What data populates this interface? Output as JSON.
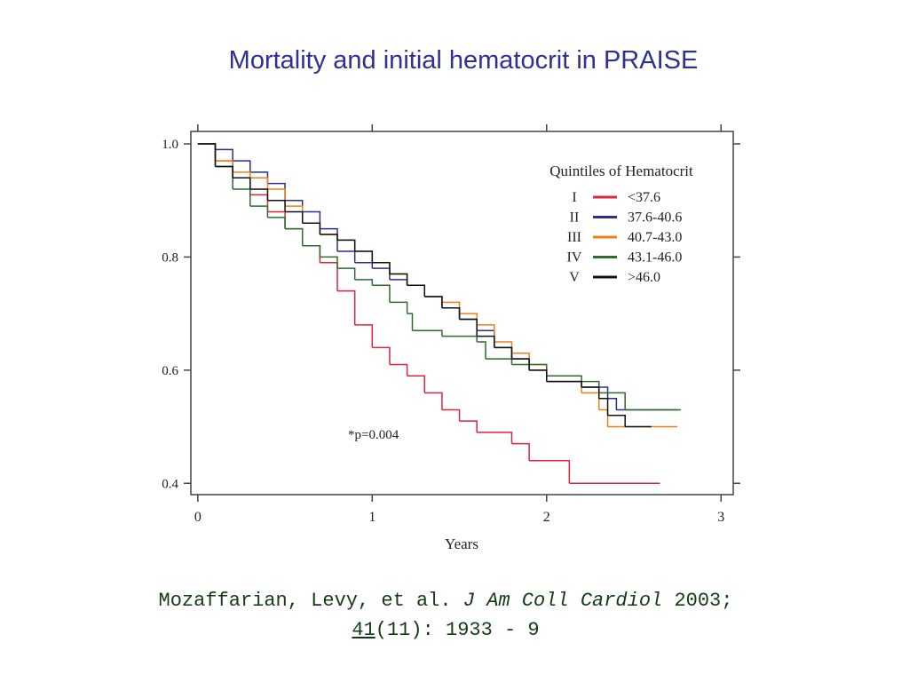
{
  "chart_data": {
    "type": "step",
    "title": "Mortality and initial hematocrit in PRAISE",
    "xlabel": "Years",
    "xlim": [
      -0.04,
      3.07
    ],
    "ylim": [
      0.38,
      1.022
    ],
    "xticks": [
      0,
      1,
      2,
      3
    ],
    "yticks": [
      {
        "value": 1,
        "label": "1.0"
      },
      0.8,
      0.6,
      0.4
    ],
    "legend_title": "Quintiles of Hematocrit",
    "annotation": "*p=0.004",
    "series": [
      {
        "name": "I",
        "label": "<37.6",
        "color": "#d7263d",
        "x": [
          0,
          0.1,
          0.2,
          0.3,
          0.4,
          0.5,
          0.6,
          0.7,
          0.8,
          0.9,
          1.0,
          1.1,
          1.2,
          1.3,
          1.4,
          1.5,
          1.6,
          1.8,
          1.9,
          2.13,
          2.65
        ],
        "values": [
          1.0,
          0.97,
          0.94,
          0.91,
          0.88,
          0.85,
          0.82,
          0.79,
          0.74,
          0.68,
          0.64,
          0.61,
          0.59,
          0.56,
          0.53,
          0.51,
          0.49,
          0.47,
          0.44,
          0.4,
          0.4
        ]
      },
      {
        "name": "II",
        "label": "37.6-40.6",
        "color": "#2b2f8f",
        "x": [
          0,
          0.1,
          0.2,
          0.3,
          0.4,
          0.5,
          0.6,
          0.7,
          0.8,
          0.9,
          1.0,
          1.1,
          1.2,
          1.3,
          1.4,
          1.5,
          1.6,
          1.7,
          1.8,
          1.9,
          2.0,
          2.2,
          2.35,
          2.4,
          2.75
        ],
        "values": [
          1.0,
          0.99,
          0.97,
          0.95,
          0.93,
          0.9,
          0.88,
          0.85,
          0.81,
          0.79,
          0.78,
          0.76,
          0.75,
          0.73,
          0.71,
          0.69,
          0.67,
          0.64,
          0.62,
          0.6,
          0.58,
          0.57,
          0.55,
          0.53,
          0.53
        ]
      },
      {
        "name": "III",
        "label": "40.7-43.0",
        "color": "#f07f1a",
        "x": [
          0,
          0.1,
          0.2,
          0.3,
          0.4,
          0.5,
          0.6,
          0.7,
          0.8,
          0.9,
          1.0,
          1.1,
          1.2,
          1.3,
          1.4,
          1.5,
          1.6,
          1.7,
          1.8,
          1.9,
          2.0,
          2.2,
          2.3,
          2.35,
          2.75
        ],
        "values": [
          1.0,
          0.97,
          0.95,
          0.94,
          0.92,
          0.89,
          0.86,
          0.84,
          0.83,
          0.81,
          0.79,
          0.77,
          0.75,
          0.73,
          0.72,
          0.7,
          0.68,
          0.65,
          0.63,
          0.61,
          0.58,
          0.56,
          0.53,
          0.5,
          0.5
        ]
      },
      {
        "name": "IV",
        "label": "43.1-46.0",
        "color": "#2e6b2e",
        "x": [
          0,
          0.1,
          0.2,
          0.3,
          0.4,
          0.5,
          0.6,
          0.7,
          0.8,
          0.9,
          1.0,
          1.1,
          1.2,
          1.23,
          1.4,
          1.6,
          1.65,
          1.8,
          2.0,
          2.2,
          2.3,
          2.45,
          2.77
        ],
        "values": [
          1.0,
          0.96,
          0.92,
          0.89,
          0.87,
          0.85,
          0.82,
          0.8,
          0.78,
          0.76,
          0.75,
          0.72,
          0.7,
          0.67,
          0.66,
          0.65,
          0.62,
          0.61,
          0.59,
          0.58,
          0.56,
          0.53,
          0.53
        ]
      },
      {
        "name": "V",
        "label": ">46.0",
        "color": "#111111",
        "x": [
          0,
          0.1,
          0.2,
          0.3,
          0.4,
          0.5,
          0.6,
          0.7,
          0.8,
          0.9,
          1.0,
          1.1,
          1.2,
          1.3,
          1.4,
          1.5,
          1.6,
          1.7,
          1.8,
          1.9,
          2.0,
          2.2,
          2.3,
          2.35,
          2.45,
          2.6
        ],
        "values": [
          1.0,
          0.96,
          0.94,
          0.92,
          0.9,
          0.88,
          0.86,
          0.84,
          0.83,
          0.81,
          0.79,
          0.77,
          0.75,
          0.73,
          0.71,
          0.69,
          0.66,
          0.64,
          0.62,
          0.6,
          0.58,
          0.57,
          0.55,
          0.52,
          0.5,
          0.5
        ]
      }
    ]
  },
  "citation": {
    "authors": "Mozaffarian, Levy, et al.",
    "journal": "J Am Coll Cardiol",
    "year": "2003;",
    "volume": "41",
    "issue_pages": "(11): 1933 - 9"
  }
}
